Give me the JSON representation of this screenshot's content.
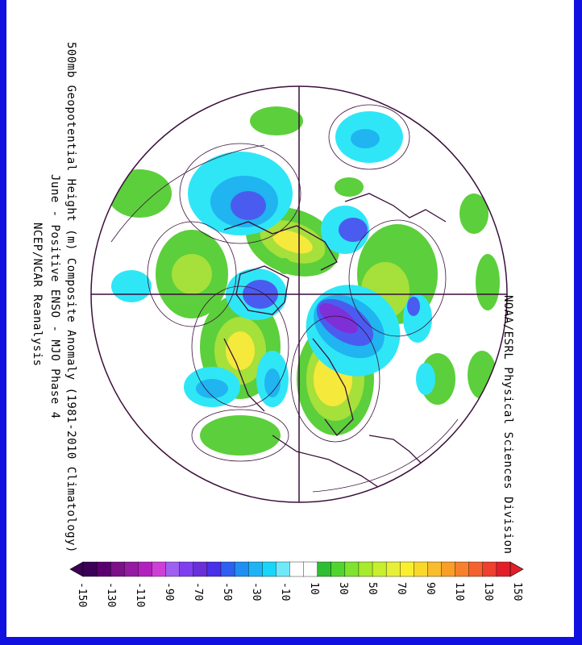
{
  "titles": {
    "line1": "500mb Geopotential Height (m) Composite Anomaly (1981-2010 Climatology)",
    "line2": "June - Positive ENSO - MJO Phase 4",
    "line3": "NCEP/NCAR Reanalysis",
    "credit": "NOAA/ESRL Physical Sciences Division"
  },
  "colorbar": {
    "min_label": "-150",
    "max_label": "150",
    "labels": [
      "-150",
      "-130",
      "-110",
      "-90",
      "-70",
      "-50",
      "-30",
      "-10",
      "10",
      "30",
      "50",
      "70",
      "90",
      "110",
      "130",
      "150"
    ],
    "colors": [
      "#3c0057",
      "#5a006e",
      "#7a1188",
      "#951ba3",
      "#b21fbe",
      "#ce3fd8",
      "#9f5ff0",
      "#7f3fef",
      "#6a2fd9",
      "#4a30e8",
      "#2f5ff0",
      "#1f8ff3",
      "#1fb3f6",
      "#18d5fa",
      "#6fe9f8",
      "#ffffff",
      "#ffffff",
      "#2fbe32",
      "#52d42f",
      "#7fe32f",
      "#a8ea2e",
      "#c8ef2e",
      "#e6f039",
      "#f9ef2f",
      "#f9d72b",
      "#f9bc2c",
      "#f99e27",
      "#f7802d",
      "#f3612f",
      "#ee3f2f",
      "#e21f29"
    ]
  },
  "map": {
    "projection": "north-polar-stereographic",
    "colors": {
      "positive_light": "#5ccf3c",
      "positive_mid": "#a6e03a",
      "positive_strong": "#f5e93c",
      "negative_light": "#2fe6f7",
      "negative_mid": "#20b4f0",
      "negative_strong": "#4a5cf0",
      "negative_extreme": "#7f2fd8",
      "coastline": "#3a0f3a"
    }
  }
}
